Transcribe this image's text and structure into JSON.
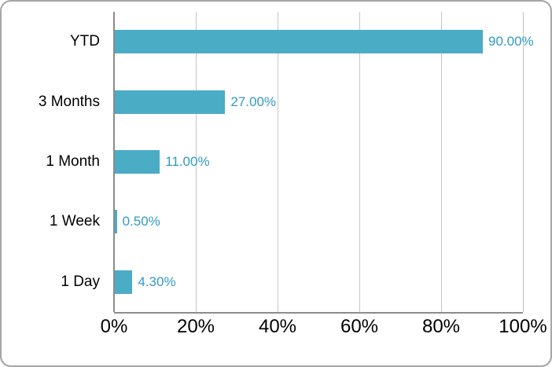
{
  "chart_data": {
    "type": "bar",
    "orientation": "horizontal",
    "title": "",
    "xlabel": "",
    "ylabel": "",
    "categories": [
      "YTD",
      "3 Months",
      "1 Month",
      "1 Week",
      "1 Day"
    ],
    "values": [
      90.0,
      27.0,
      11.0,
      0.5,
      4.3
    ],
    "value_labels": [
      "90.00%",
      "27.00%",
      "11.00%",
      "0.50%",
      "4.30%"
    ],
    "x_ticks": [
      {
        "value": 0,
        "label": "0%"
      },
      {
        "value": 20,
        "label": "20%"
      },
      {
        "value": 40,
        "label": "40%"
      },
      {
        "value": 60,
        "label": "60%"
      },
      {
        "value": 80,
        "label": "80%"
      },
      {
        "value": 100,
        "label": "100%"
      }
    ],
    "xlim": [
      0,
      100
    ],
    "grid": "vertical-only",
    "legend": "none",
    "value_label_position": "outside-end"
  },
  "colors": {
    "background": "#FFFFFF",
    "frame_border": "#A6A6A6",
    "bar_fill": "#4BACC6",
    "value_label": "#3199C6",
    "gridline": "#C6C6C6",
    "axis_line": "#8C8C8C",
    "category_text": "#000000",
    "tick_text": "#000000"
  }
}
